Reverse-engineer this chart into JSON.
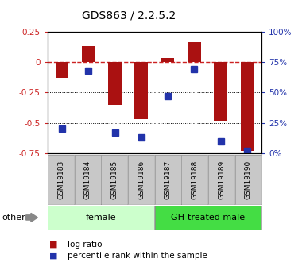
{
  "title": "GDS863 / 2.2.5.2",
  "samples": [
    "GSM19183",
    "GSM19184",
    "GSM19185",
    "GSM19186",
    "GSM19187",
    "GSM19188",
    "GSM19189",
    "GSM19190"
  ],
  "log_ratio": [
    -0.13,
    0.13,
    -0.35,
    -0.47,
    0.03,
    0.16,
    -0.48,
    -0.73
  ],
  "percentile_rank": [
    20,
    68,
    17,
    13,
    47,
    69,
    10,
    2
  ],
  "ylim": [
    -0.75,
    0.25
  ],
  "right_ylim": [
    0,
    100
  ],
  "bar_color": "#AA1111",
  "square_color": "#2233AA",
  "hline_color": "#CC2222",
  "dot_line_color": "black",
  "bg_plot": "#FFFFFF",
  "bg_xtick": "#C8C8C8",
  "group1_label": "female",
  "group1_color": "#CCFFCC",
  "group2_label": "GH-treated male",
  "group2_color": "#44DD44",
  "other_label": "other",
  "legend_bar_label": "log ratio",
  "legend_sq_label": "percentile rank within the sample",
  "left_tick_color": "#CC2222",
  "right_tick_color": "#2233AA"
}
